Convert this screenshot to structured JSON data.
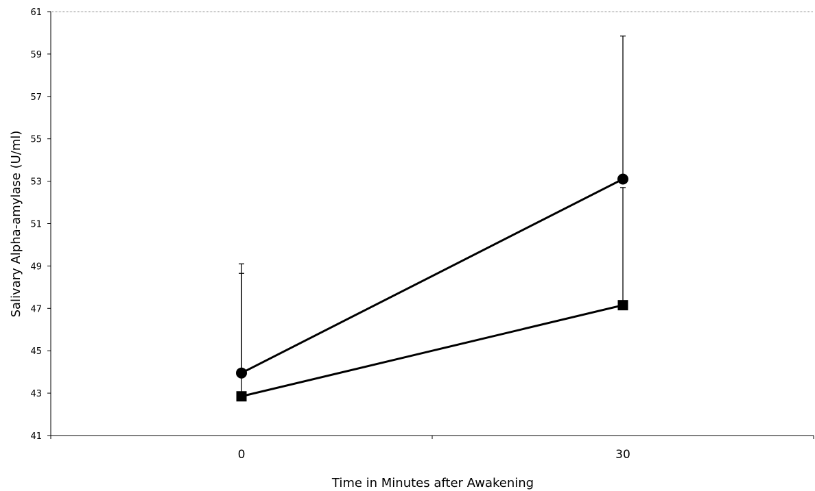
{
  "chart_data": {
    "type": "line",
    "xlabel": "Time in Minutes after Awakening",
    "ylabel": "Salivary Alpha-amylase (U/ml)",
    "ylim": [
      41,
      61
    ],
    "yticks": [
      "41",
      "43",
      "45",
      "47",
      "49",
      "51",
      "53",
      "55",
      "57",
      "59",
      "61"
    ],
    "categories": [
      "0",
      "30"
    ],
    "grid": false,
    "legend": "none",
    "series": [
      {
        "marker": "circle",
        "color": "#000000",
        "values": [
          43.95,
          53.1
        ],
        "error_upper": [
          48.65,
          59.85
        ]
      },
      {
        "marker": "square",
        "color": "#000000",
        "values": [
          42.85,
          47.15
        ],
        "error_upper": [
          49.1,
          52.7
        ]
      }
    ]
  }
}
